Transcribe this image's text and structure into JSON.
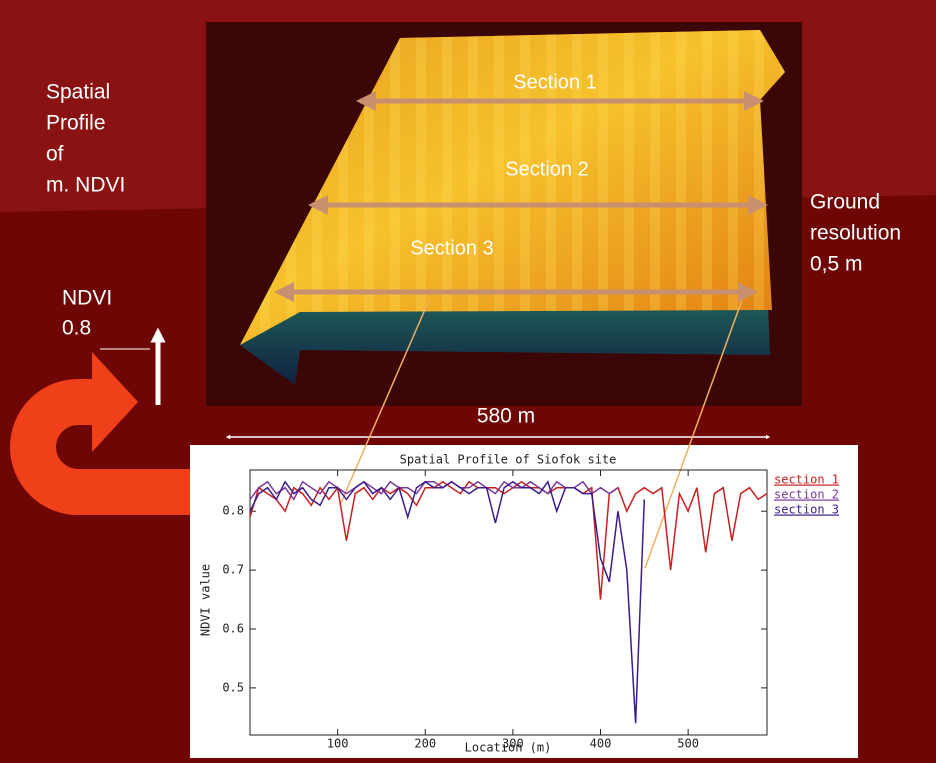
{
  "slide": {
    "title_lines": [
      "Spatial",
      "Profile",
      "of",
      "m. NDVI"
    ],
    "sections": [
      "Section 1",
      "Section 2",
      "Section 3"
    ],
    "resolution_lines": [
      "Ground",
      "resolution",
      "0,5 m"
    ],
    "ndvi_lines": [
      "NDVI",
      "0.8"
    ],
    "width_label": "580 m"
  },
  "chart_data": {
    "type": "line",
    "title": "Spatial Profile of Siofok site",
    "x_label": "Location (m)",
    "y_label": "NDVI value",
    "x": [
      0,
      10,
      20,
      30,
      40,
      50,
      60,
      70,
      80,
      90,
      100,
      110,
      120,
      130,
      140,
      150,
      160,
      170,
      180,
      190,
      200,
      210,
      220,
      230,
      240,
      250,
      260,
      270,
      280,
      290,
      300,
      310,
      320,
      330,
      340,
      350,
      360,
      370,
      380,
      390,
      400,
      410,
      420,
      430,
      440,
      450,
      460,
      470,
      480,
      490,
      500,
      510,
      520,
      530,
      540,
      550,
      560,
      570,
      580,
      590
    ],
    "series": [
      {
        "name": "section 1",
        "color": "#c8201e",
        "values": [
          0.79,
          0.84,
          0.83,
          0.82,
          0.8,
          0.84,
          0.83,
          0.81,
          0.84,
          0.82,
          0.84,
          0.75,
          0.83,
          0.84,
          0.82,
          0.84,
          0.83,
          0.84,
          0.83,
          0.81,
          0.84,
          0.84,
          0.85,
          0.84,
          0.83,
          0.85,
          0.84,
          0.84,
          0.84,
          0.83,
          0.84,
          0.85,
          0.84,
          0.84,
          0.83,
          0.84,
          0.84,
          0.84,
          0.83,
          0.84,
          0.65,
          0.83,
          0.84,
          0.8,
          0.83,
          0.84,
          0.83,
          0.84,
          0.7,
          0.83,
          0.8,
          0.84,
          0.73,
          0.83,
          0.84,
          0.75,
          0.83,
          0.84,
          0.82,
          0.83
        ]
      },
      {
        "name": "section  2",
        "color": "#7a3a9c",
        "values": [
          0.82,
          0.84,
          0.85,
          0.83,
          0.84,
          0.82,
          0.85,
          0.84,
          0.83,
          0.85,
          0.84,
          0.83,
          0.84,
          0.85,
          0.84,
          0.83,
          0.85,
          0.84,
          0.84,
          0.83,
          0.85,
          0.85,
          0.84,
          0.85,
          0.84,
          0.84,
          0.85,
          0.84,
          0.83,
          0.85,
          0.84,
          0.84,
          0.85,
          0.84,
          0.83,
          0.85,
          0.84,
          0.84,
          0.85,
          0.83,
          0.84,
          0.83,
          0.84,
          null,
          null,
          null,
          null,
          null,
          null,
          null,
          null,
          null,
          null,
          null,
          null,
          null,
          null,
          null,
          null,
          null
        ]
      },
      {
        "name": "section 3",
        "color": "#3c1c8c",
        "values": [
          0.8,
          0.83,
          0.84,
          0.82,
          0.85,
          0.83,
          0.84,
          0.82,
          0.81,
          0.84,
          0.84,
          0.82,
          0.84,
          0.85,
          0.83,
          0.84,
          0.82,
          0.84,
          0.79,
          0.84,
          0.85,
          0.84,
          0.84,
          0.85,
          0.84,
          0.83,
          0.84,
          0.84,
          0.78,
          0.84,
          0.85,
          0.84,
          0.84,
          0.83,
          0.85,
          0.8,
          0.84,
          0.84,
          0.83,
          0.83,
          0.72,
          0.68,
          0.8,
          0.7,
          0.44,
          0.82,
          null,
          null,
          null,
          null,
          null,
          null,
          null,
          null,
          null,
          null,
          null,
          null,
          null,
          null
        ]
      }
    ],
    "xlim": [
      0,
      590
    ],
    "ylim": [
      0.42,
      0.87
    ],
    "xticks": [
      100,
      200,
      300,
      400,
      500
    ],
    "yticks": [
      0.5,
      0.6,
      0.7,
      0.8
    ],
    "grid": false,
    "legend": "right"
  }
}
